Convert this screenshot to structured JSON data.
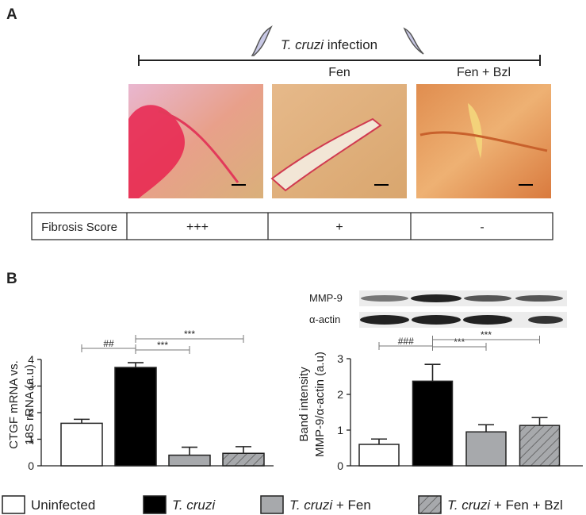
{
  "panel_a": {
    "label": "A",
    "infection": "T. cruzi infection",
    "columns": [
      "Fen",
      "Fen + Bzl"
    ],
    "table": {
      "rows": [
        [
          "Fibrosis Score",
          "+++",
          "+",
          "-"
        ]
      ]
    }
  },
  "panel_b": {
    "label": "B",
    "blot_labels": [
      "MMP-9",
      "α-actin"
    ]
  },
  "chart_data": [
    {
      "type": "bar",
      "y_label": [
        "CTGF mRNA vs.",
        "18S rRNA (a.u)"
      ],
      "categories": [
        "Uninfected",
        "T. cruzi",
        "T. cruzi + Fen",
        "T. cruzi + Fen + Bzl"
      ],
      "values": [
        1.6,
        3.7,
        0.4,
        0.47
      ],
      "errors": [
        0.15,
        0.18,
        0.3,
        0.25
      ],
      "colors": [
        "#ffffff",
        "#000000",
        "#a7a9ac",
        "#a7a9ac"
      ],
      "hatch": [
        false,
        false,
        false,
        true
      ],
      "ylim": [
        0,
        4
      ],
      "yticks": [
        0,
        1,
        2,
        3,
        4
      ],
      "annotations": [
        "##",
        "***",
        "***"
      ]
    },
    {
      "type": "bar",
      "y_label": [
        "Band intensity",
        "MMP-9/α-actin (a.u)"
      ],
      "categories": [
        null,
        null,
        null,
        null
      ],
      "values": [
        0.6,
        2.37,
        0.95,
        1.13
      ],
      "errors": [
        0.15,
        0.47,
        0.2,
        0.22
      ],
      "colors": [
        "#ffffff",
        "#000000",
        "#a7a9ac",
        "#a7a9ac"
      ],
      "hatch": [
        false,
        false,
        false,
        true
      ],
      "ylim": [
        0,
        3
      ],
      "yticks": [
        0,
        1,
        2,
        3
      ],
      "annotations": [
        "###",
        "***",
        "***"
      ]
    }
  ]
}
